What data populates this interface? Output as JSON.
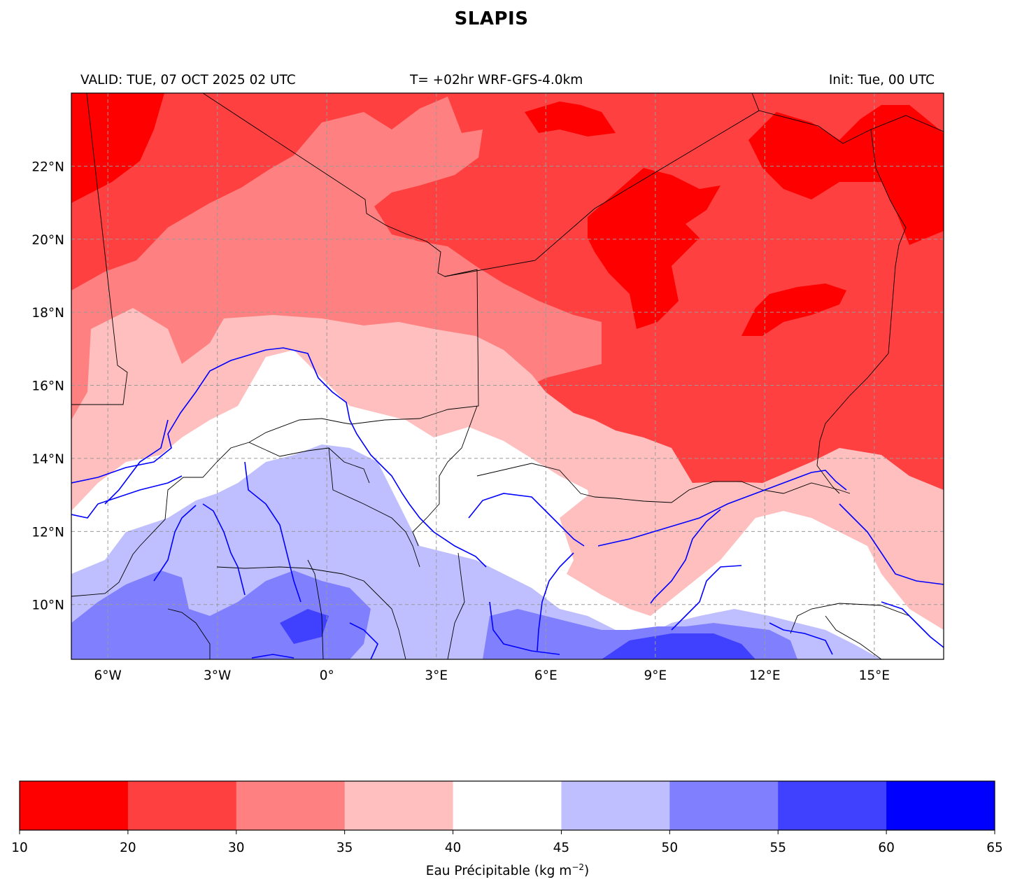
{
  "title": "SLAPIS",
  "header": {
    "valid": "VALID: TUE, 07 OCT 2025 02 UTC",
    "model": "T= +02hr WRF-GFS-4.0km",
    "init": "Init: Tue, 00 UTC"
  },
  "map": {
    "extent": {
      "lon": [
        -7.0,
        16.9
      ],
      "lat": [
        8.5,
        24.0
      ]
    },
    "lat_ticks": [
      {
        "value": 22,
        "label": "22°N"
      },
      {
        "value": 20,
        "label": "20°N"
      },
      {
        "value": 18,
        "label": "18°N"
      },
      {
        "value": 16,
        "label": "16°N"
      },
      {
        "value": 14,
        "label": "14°N"
      },
      {
        "value": 12,
        "label": "12°N"
      },
      {
        "value": 10,
        "label": "10°N"
      }
    ],
    "lon_ticks": [
      {
        "value": -6,
        "label": "6°W"
      },
      {
        "value": -3,
        "label": "3°W"
      },
      {
        "value": 0,
        "label": "0°"
      },
      {
        "value": 3,
        "label": "3°E"
      },
      {
        "value": 6,
        "label": "6°E"
      },
      {
        "value": 9,
        "label": "9°E"
      },
      {
        "value": 12,
        "label": "12°E"
      },
      {
        "value": 15,
        "label": "15°E"
      }
    ],
    "gridlines": true
  },
  "colorbar": {
    "boundaries": [
      "10",
      "20",
      "30",
      "35",
      "40",
      "45",
      "50",
      "55",
      "60",
      "65"
    ],
    "colors": [
      "#ff0000",
      "#ff4040",
      "#ff8080",
      "#ffbfbf",
      "#ffffff",
      "#bfbfff",
      "#8080ff",
      "#4040ff",
      "#0000ff"
    ],
    "label_main": "Eau Précipitable (kg m",
    "label_exp": "−2",
    "label_end": ")"
  }
}
